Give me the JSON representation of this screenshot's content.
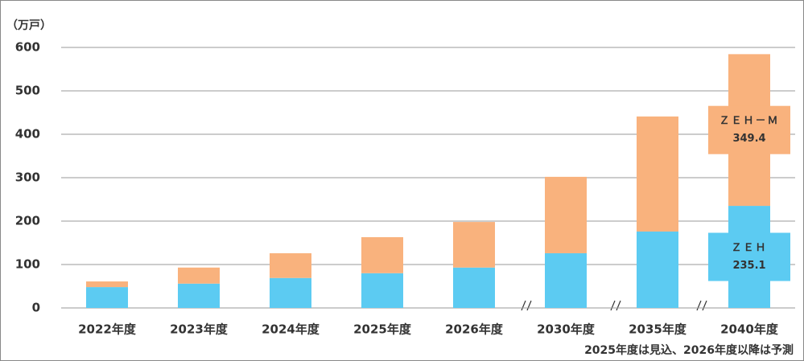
{
  "chart_data": {
    "type": "bar",
    "stacked": true,
    "y_unit_label": "（万戸）",
    "annotation": "2025年度は見込、2026年度以降は予測",
    "categories": [
      "2022年度",
      "2023年度",
      "2024年度",
      "2025年度",
      "2026年度",
      "2030年度",
      "2035年度",
      "2040年度"
    ],
    "series": [
      {
        "name": "ＺＥＨ",
        "color": "#5ccbf2",
        "values": [
          48,
          56,
          69,
          80,
          93,
          126,
          176,
          235.1
        ]
      },
      {
        "name": "ＺＥＨ－Ｍ",
        "color": "#f9b27d",
        "values": [
          13,
          37,
          57,
          83,
          105,
          176,
          265,
          349.4
        ]
      }
    ],
    "ylim": [
      0,
      600
    ],
    "yticks": [
      0,
      100,
      200,
      300,
      400,
      500,
      600
    ],
    "grid": true
  }
}
